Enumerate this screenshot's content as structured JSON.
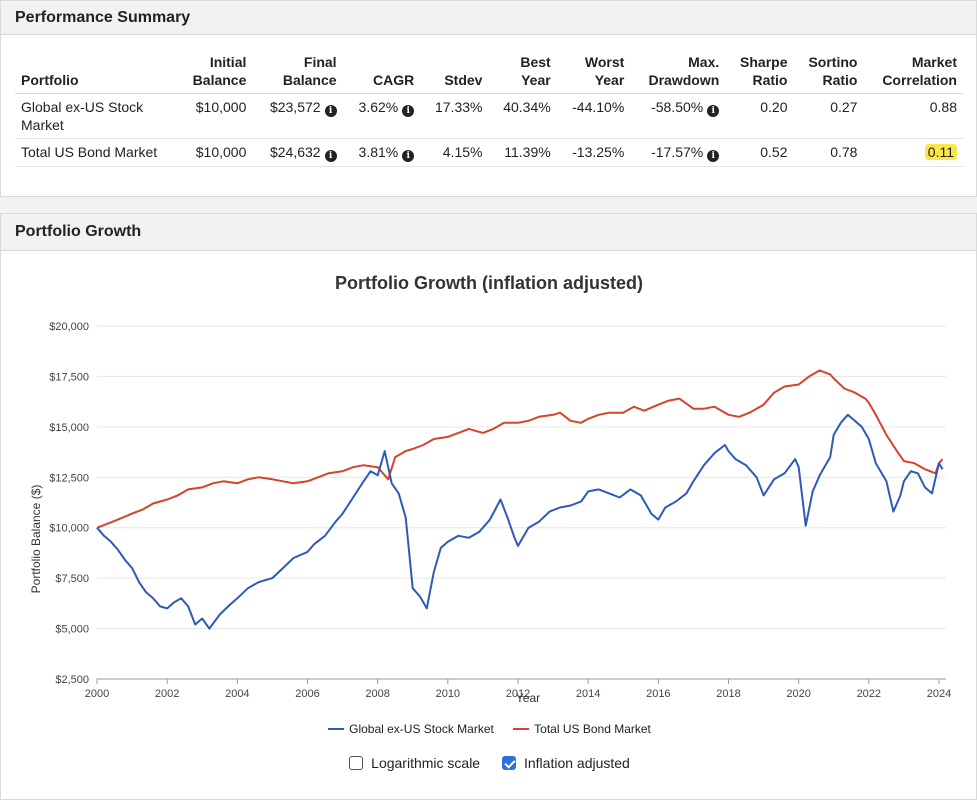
{
  "performance_summary": {
    "title": "Performance Summary",
    "columns": [
      {
        "line1": "",
        "line2": "Portfolio"
      },
      {
        "line1": "Initial",
        "line2": "Balance"
      },
      {
        "line1": "Final",
        "line2": "Balance"
      },
      {
        "line1": "",
        "line2": "CAGR"
      },
      {
        "line1": "",
        "line2": "Stdev"
      },
      {
        "line1": "Best",
        "line2": "Year"
      },
      {
        "line1": "Worst",
        "line2": "Year"
      },
      {
        "line1": "Max.",
        "line2": "Drawdown"
      },
      {
        "line1": "Sharpe",
        "line2": "Ratio"
      },
      {
        "line1": "Sortino",
        "line2": "Ratio"
      },
      {
        "line1": "Market",
        "line2": "Correlation"
      }
    ],
    "rows": [
      {
        "portfolio": "Global ex-US Stock Market",
        "initial": "$10,000",
        "final": "$23,572",
        "cagr": "3.62%",
        "stdev": "17.33%",
        "best": "40.34%",
        "worst": "-44.10%",
        "drawdown": "-58.50%",
        "sharpe": "0.20",
        "sortino": "0.27",
        "correlation": "0.88"
      },
      {
        "portfolio": "Total US Bond Market",
        "initial": "$10,000",
        "final": "$24,632",
        "cagr": "3.81%",
        "stdev": "4.15%",
        "best": "11.39%",
        "worst": "-13.25%",
        "drawdown": "-17.57%",
        "sharpe": "0.52",
        "sortino": "0.78",
        "correlation": "0.11"
      }
    ],
    "info_icon": "i"
  },
  "portfolio_growth": {
    "title": "Portfolio Growth",
    "options": [
      {
        "label": "Logarithmic scale",
        "checked": false
      },
      {
        "label": "Inflation adjusted",
        "checked": true
      }
    ]
  },
  "chart_data": {
    "type": "line",
    "title": "Portfolio Growth (inflation adjusted)",
    "xlabel": "Year",
    "ylabel": "Portfolio Balance ($)",
    "xlim": [
      2000,
      2024.2
    ],
    "ylim": [
      2500,
      20000
    ],
    "x_ticks": [
      2000,
      2002,
      2004,
      2006,
      2008,
      2010,
      2012,
      2014,
      2016,
      2018,
      2020,
      2022,
      2024
    ],
    "y_ticks": [
      2500,
      5000,
      7500,
      10000,
      12500,
      15000,
      17500,
      20000
    ],
    "y_tick_labels": [
      "$2,500",
      "$5,000",
      "$7,500",
      "$10,000",
      "$12,500",
      "$15,000",
      "$17,500",
      "$20,000"
    ],
    "grid": true,
    "series": [
      {
        "name": "Global ex-US Stock Market",
        "color": "#2f59b9",
        "x": [
          2000.0,
          2000.2,
          2000.4,
          2000.6,
          2000.8,
          2001.0,
          2001.2,
          2001.4,
          2001.6,
          2001.8,
          2002.0,
          2002.2,
          2002.4,
          2002.6,
          2002.8,
          2003.0,
          2003.2,
          2003.5,
          2003.8,
          2004.0,
          2004.3,
          2004.6,
          2005.0,
          2005.3,
          2005.6,
          2006.0,
          2006.2,
          2006.5,
          2006.8,
          2007.0,
          2007.3,
          2007.6,
          2007.8,
          2008.0,
          2008.2,
          2008.4,
          2008.6,
          2008.8,
          2009.0,
          2009.2,
          2009.4,
          2009.6,
          2009.8,
          2010.0,
          2010.3,
          2010.6,
          2010.9,
          2011.2,
          2011.5,
          2011.7,
          2011.9,
          2012.0,
          2012.3,
          2012.6,
          2012.9,
          2013.2,
          2013.5,
          2013.8,
          2014.0,
          2014.3,
          2014.6,
          2014.9,
          2015.2,
          2015.5,
          2015.8,
          2016.0,
          2016.2,
          2016.5,
          2016.8,
          2017.0,
          2017.3,
          2017.6,
          2017.9,
          2018.0,
          2018.2,
          2018.5,
          2018.8,
          2019.0,
          2019.3,
          2019.6,
          2019.9,
          2020.0,
          2020.2,
          2020.4,
          2020.6,
          2020.9,
          2021.0,
          2021.2,
          2021.4,
          2021.6,
          2021.8,
          2022.0,
          2022.2,
          2022.5,
          2022.7,
          2022.9,
          2023.0,
          2023.2,
          2023.4,
          2023.6,
          2023.8,
          2024.0,
          2024.1
        ],
        "values": [
          10000,
          9600,
          9300,
          8900,
          8400,
          8000,
          7300,
          6800,
          6500,
          6100,
          6000,
          6300,
          6500,
          6100,
          5200,
          5500,
          5000,
          5700,
          6200,
          6500,
          7000,
          7300,
          7500,
          8000,
          8500,
          8800,
          9200,
          9600,
          10300,
          10700,
          11500,
          12300,
          12800,
          12600,
          13800,
          12200,
          11700,
          10500,
          7000,
          6600,
          6000,
          7800,
          9000,
          9300,
          9600,
          9500,
          9800,
          10400,
          11400,
          10500,
          9500,
          9100,
          10000,
          10300,
          10800,
          11000,
          11100,
          11300,
          11800,
          11900,
          11700,
          11500,
          11900,
          11600,
          10700,
          10400,
          11000,
          11300,
          11700,
          12300,
          13100,
          13700,
          14100,
          13800,
          13400,
          13100,
          12500,
          11600,
          12400,
          12700,
          13400,
          13000,
          10100,
          11800,
          12600,
          13500,
          14600,
          15200,
          15600,
          15300,
          15000,
          14400,
          13200,
          12300,
          10800,
          11600,
          12300,
          12800,
          12700,
          12000,
          11700,
          13200,
          12900
        ]
      },
      {
        "name": "Total US Bond Market",
        "color": "#d5442a",
        "x": [
          2000.0,
          2000.3,
          2000.6,
          2001.0,
          2001.3,
          2001.6,
          2002.0,
          2002.3,
          2002.6,
          2003.0,
          2003.3,
          2003.6,
          2004.0,
          2004.3,
          2004.6,
          2005.0,
          2005.3,
          2005.6,
          2006.0,
          2006.3,
          2006.6,
          2007.0,
          2007.3,
          2007.6,
          2008.0,
          2008.3,
          2008.5,
          2008.8,
          2009.0,
          2009.3,
          2009.6,
          2010.0,
          2010.3,
          2010.6,
          2011.0,
          2011.3,
          2011.6,
          2012.0,
          2012.3,
          2012.6,
          2013.0,
          2013.2,
          2013.5,
          2013.8,
          2014.0,
          2014.3,
          2014.6,
          2015.0,
          2015.3,
          2015.6,
          2016.0,
          2016.3,
          2016.6,
          2017.0,
          2017.3,
          2017.6,
          2018.0,
          2018.3,
          2018.6,
          2019.0,
          2019.3,
          2019.6,
          2020.0,
          2020.3,
          2020.6,
          2020.9,
          2021.0,
          2021.3,
          2021.6,
          2021.9,
          2022.0,
          2022.2,
          2022.5,
          2022.8,
          2023.0,
          2023.3,
          2023.6,
          2023.9,
          2024.0,
          2024.1
        ],
        "values": [
          10000,
          10200,
          10400,
          10700,
          10900,
          11200,
          11400,
          11600,
          11900,
          12000,
          12200,
          12300,
          12200,
          12400,
          12500,
          12400,
          12300,
          12200,
          12300,
          12500,
          12700,
          12800,
          13000,
          13100,
          13000,
          12400,
          13500,
          13800,
          13900,
          14100,
          14400,
          14500,
          14700,
          14900,
          14700,
          14900,
          15200,
          15200,
          15300,
          15500,
          15600,
          15700,
          15300,
          15200,
          15400,
          15600,
          15700,
          15700,
          16000,
          15800,
          16100,
          16300,
          16400,
          15900,
          15900,
          16000,
          15600,
          15500,
          15700,
          16100,
          16700,
          17000,
          17100,
          17500,
          17800,
          17600,
          17400,
          16900,
          16700,
          16400,
          16200,
          15600,
          14600,
          13800,
          13300,
          13200,
          12900,
          12700,
          13200,
          13400
        ]
      }
    ]
  }
}
